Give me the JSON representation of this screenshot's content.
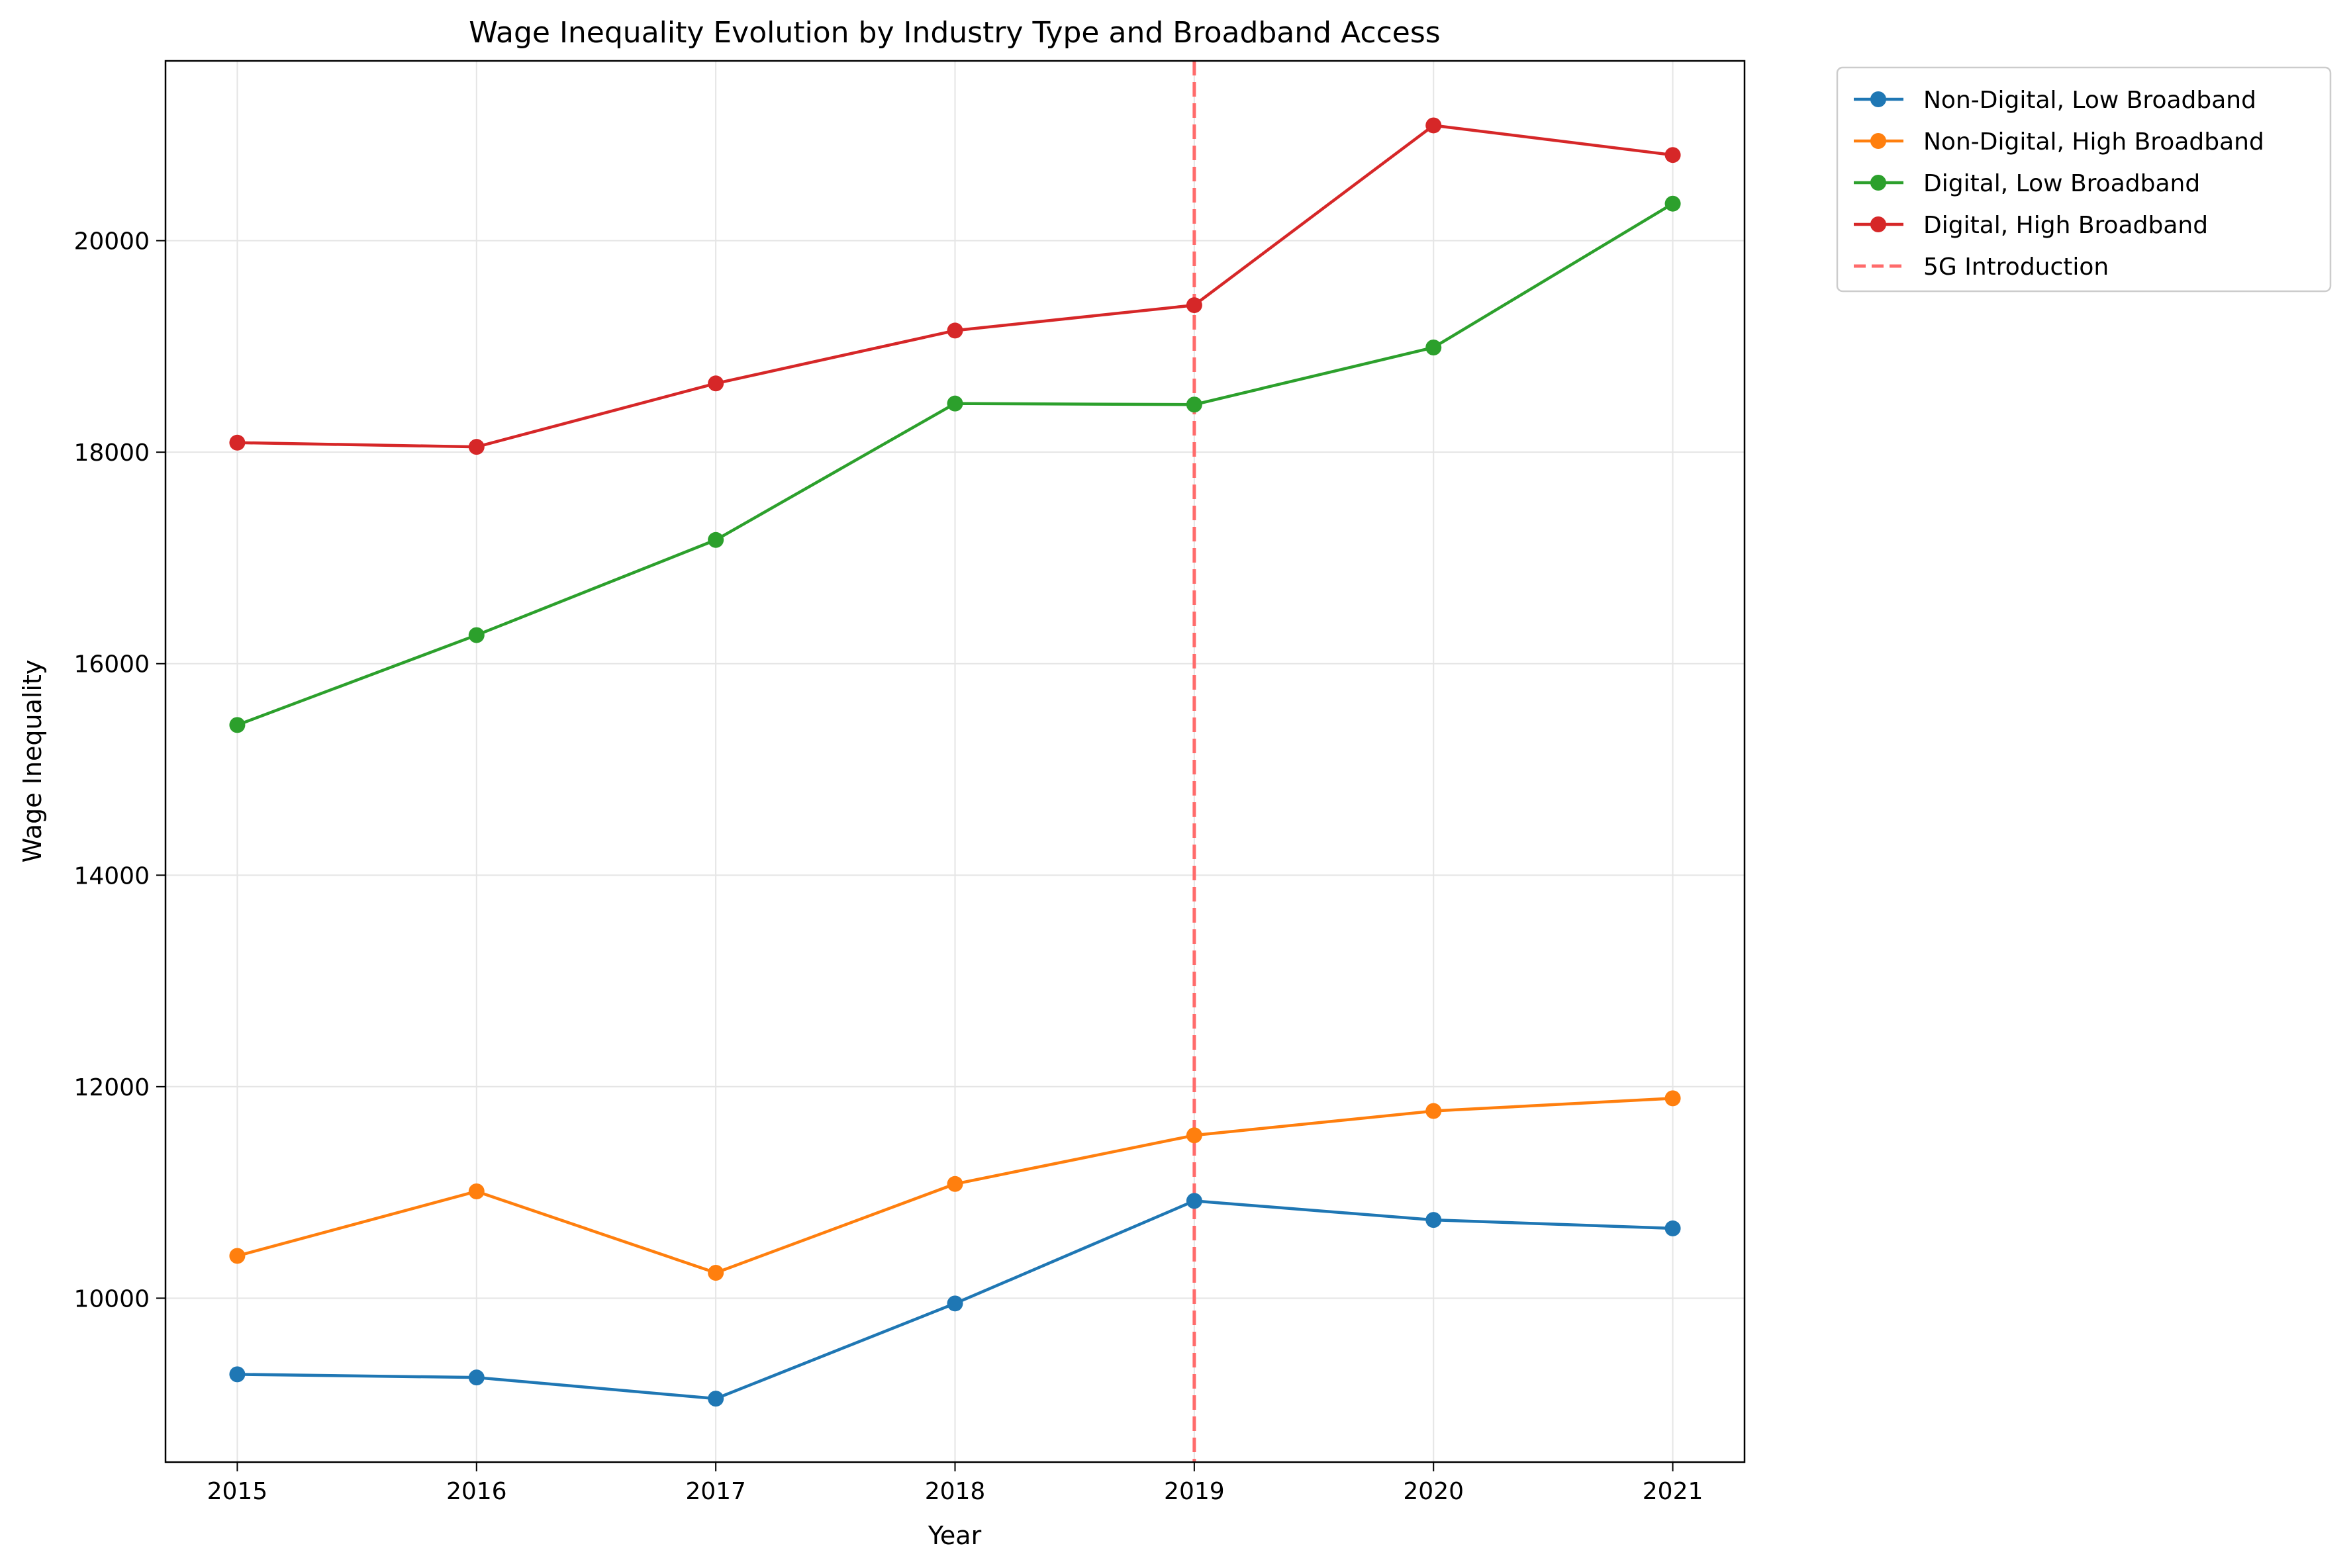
{
  "chart_data": {
    "type": "line",
    "title": "Wage Inequality Evolution by Industry Type and Broadband Access",
    "xlabel": "Year",
    "ylabel": "Wage Inequality",
    "x": [
      "2015",
      "2016",
      "2017",
      "2018",
      "2019",
      "2020",
      "2021"
    ],
    "xlim": [
      2014.7,
      2021.3
    ],
    "ylim": [
      8450,
      21700
    ],
    "yticks": [
      10000,
      12000,
      14000,
      16000,
      18000,
      20000
    ],
    "grid": true,
    "legend_position": "outside-top-right",
    "series": [
      {
        "name": "Non-Digital, Low Broadband",
        "color": "#1f77b4",
        "values": [
          9280,
          9250,
          9050,
          9950,
          10920,
          10740,
          10660
        ]
      },
      {
        "name": "Non-Digital, High Broadband",
        "color": "#ff7f0e",
        "values": [
          10400,
          11010,
          10240,
          11080,
          11540,
          11770,
          11890
        ]
      },
      {
        "name": "Digital, Low Broadband",
        "color": "#2ca02c",
        "values": [
          15420,
          16270,
          17170,
          18460,
          18450,
          18990,
          20350
        ]
      },
      {
        "name": "Digital, High Broadband",
        "color": "#d62728",
        "values": [
          18090,
          18050,
          18650,
          19150,
          19390,
          21090,
          20810
        ]
      }
    ],
    "annotations": [
      {
        "type": "vline",
        "x": 2019,
        "label": "5G Introduction",
        "color": "#ff6b6b",
        "style": "dashed"
      }
    ]
  }
}
